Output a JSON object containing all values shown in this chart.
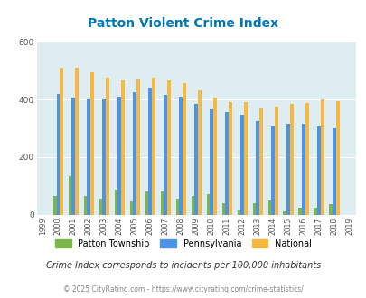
{
  "title": "Patton Violent Crime Index",
  "years": [
    1999,
    2000,
    2001,
    2002,
    2003,
    2004,
    2005,
    2006,
    2007,
    2008,
    2009,
    2010,
    2011,
    2012,
    2013,
    2014,
    2015,
    2016,
    2017,
    2018,
    2019
  ],
  "patton": [
    0,
    65,
    135,
    65,
    55,
    85,
    45,
    80,
    80,
    55,
    65,
    70,
    40,
    15,
    40,
    50,
    10,
    25,
    25,
    35,
    0
  ],
  "pennsylvania": [
    0,
    420,
    405,
    400,
    400,
    410,
    425,
    440,
    415,
    410,
    385,
    365,
    355,
    348,
    325,
    305,
    315,
    315,
    305,
    300,
    0
  ],
  "national": [
    0,
    510,
    510,
    495,
    475,
    465,
    470,
    475,
    465,
    455,
    430,
    405,
    390,
    390,
    368,
    375,
    383,
    388,
    400,
    395,
    0
  ],
  "patton_color": "#7ab648",
  "pennsylvania_color": "#4d94e8",
  "national_color": "#f5b942",
  "bg_color": "#deedf2",
  "title_color": "#0077b6",
  "subtitle": "Crime Index corresponds to incidents per 100,000 inhabitants",
  "footer": "© 2025 CityRating.com - https://www.cityrating.com/crime-statistics/",
  "ylim": [
    0,
    600
  ],
  "yticks": [
    0,
    200,
    400,
    600
  ],
  "bar_width": 0.22
}
